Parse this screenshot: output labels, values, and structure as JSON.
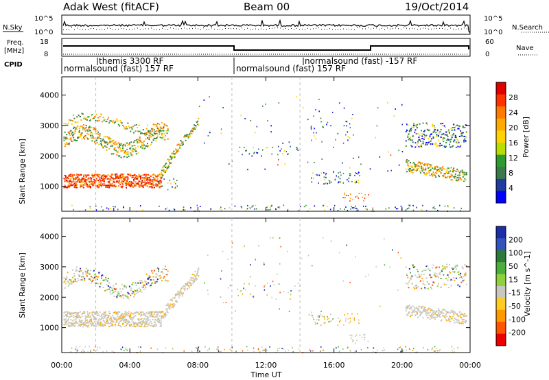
{
  "header": {
    "radar": "Adak West (fitACF)",
    "beam": "Beam 00",
    "date": "19/Oct/2014"
  },
  "top_strips": {
    "noise_label_left": "N.Sky",
    "noise_label_right": "N.Search",
    "noise_ticks": [
      "10^5",
      "10^0"
    ],
    "freq_label": "Freq.",
    "freq_unit": "[MHz]",
    "freq_ticks": [
      "18",
      "8"
    ],
    "nave_label": "Nave",
    "nave_ticks": [
      "60",
      "0"
    ],
    "cpid_label": "CPID",
    "programs": [
      {
        "text": "normalsound (fast) 157 RF",
        "start_h": 0.0,
        "row": 2
      },
      {
        "text": "themis 3300 RF",
        "start_h": 2.0,
        "row": 1
      },
      {
        "text": "normalsound (fast) 157 RF",
        "start_h": 10.0,
        "row": 2
      },
      {
        "text": "normalsound (fast) -157 RF",
        "start_h": 14.0,
        "row": 1
      }
    ]
  },
  "chart_data": [
    {
      "type": "heatmap",
      "panel": "power",
      "ylabel": "Slant Range [km]",
      "xlabel": "Time UT",
      "xlim": [
        0,
        24
      ],
      "ylim": [
        180,
        4600
      ],
      "x_ticks": [
        "00:00",
        "04:00",
        "08:00",
        "12:00",
        "16:00",
        "20:00",
        "00:00"
      ],
      "y_ticks": [
        1000,
        2000,
        3000,
        4000
      ],
      "colorbar": {
        "label": "Power [dB]",
        "ticks": [
          28,
          24,
          20,
          16,
          12,
          8,
          4
        ],
        "colors": [
          "#e00000",
          "#ff3300",
          "#ff7a00",
          "#ffaa00",
          "#ffd200",
          "#b8dd00",
          "#2e9b2e",
          "#3a7a4a",
          "#1f3c9e",
          "#0000ff"
        ]
      }
    },
    {
      "type": "heatmap",
      "panel": "velocity",
      "ylabel": "Slant Range [km]",
      "xlabel": "Time UT",
      "xlim": [
        0,
        24
      ],
      "ylim": [
        180,
        4600
      ],
      "x_ticks": [
        "00:00",
        "04:00",
        "08:00",
        "12:00",
        "16:00",
        "20:00",
        "00:00"
      ],
      "y_ticks": [
        1000,
        2000,
        3000,
        4000
      ],
      "colorbar": {
        "label": "Velocity [m s^-1]",
        "ticks": [
          200,
          100,
          50,
          15,
          -15,
          -50,
          -100,
          -200
        ],
        "colors": [
          "#1c2fa8",
          "#3355bb",
          "#2e7a3a",
          "#4caf3c",
          "#8dd13c",
          "#c8c8c0",
          "#ffcc22",
          "#ff9900",
          "#ff5500",
          "#ee0000"
        ]
      }
    }
  ]
}
